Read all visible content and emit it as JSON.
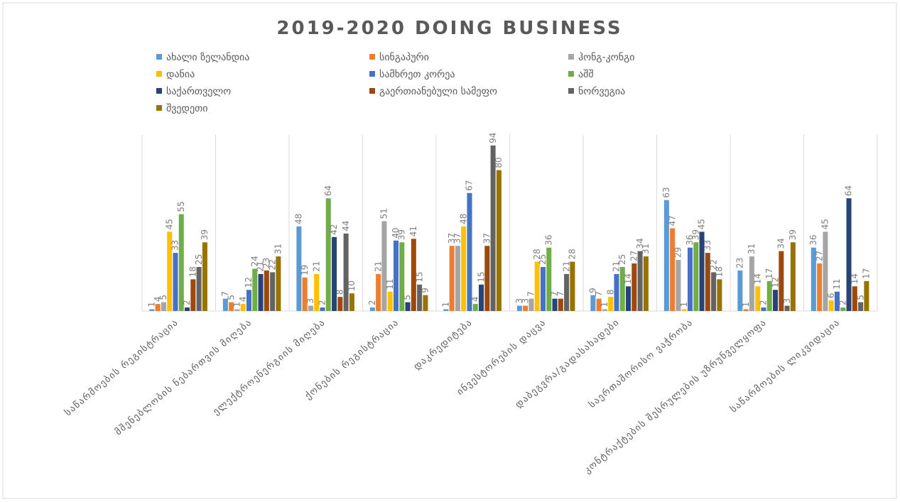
{
  "chart_data": {
    "type": "bar",
    "title": "2019-2020 DOING BUSINESS",
    "categories": [
      "საწარმოების რეგისტრაცია",
      "მშენებლობის ნებართვის მიღება",
      "ელექტროენერგიის მიღება",
      "ქონების რეგისტრაცია",
      "დაკრედიტება",
      "ინვესტორების დაცვა",
      "დაბეგვრა/გადასახადები",
      "საერთაშორისო ვაჭრობა",
      "კონტრაქტების შესრულების უზრუნველყოფა",
      "საწარმოების ლიკვიდაცია"
    ],
    "series": [
      {
        "name": "ახალი ზელანდია",
        "color": "#5b9bd5",
        "values": [
          1,
          7,
          48,
          2,
          1,
          3,
          9,
          63,
          23,
          36
        ]
      },
      {
        "name": "სინგაპური",
        "color": "#ed7d31",
        "values": [
          4,
          5,
          19,
          21,
          37,
          3,
          7,
          47,
          1,
          27
        ]
      },
      {
        "name": "ჰონგ-კონგი",
        "color": "#a5a5a5",
        "values": [
          5,
          1,
          3,
          51,
          37,
          7,
          1,
          29,
          31,
          45
        ]
      },
      {
        "name": "დანია",
        "color": "#ffc000",
        "values": [
          45,
          4,
          21,
          11,
          48,
          28,
          8,
          1,
          14,
          6
        ]
      },
      {
        "name": "სამხრეთ კორეა",
        "color": "#4472c4",
        "values": [
          33,
          12,
          2,
          40,
          67,
          25,
          21,
          36,
          2,
          11
        ]
      },
      {
        "name": "აშშ",
        "color": "#70ad47",
        "values": [
          55,
          24,
          64,
          39,
          4,
          36,
          25,
          39,
          17,
          2
        ]
      },
      {
        "name": "საქართველო",
        "color": "#264478",
        "values": [
          2,
          21,
          42,
          5,
          15,
          7,
          14,
          45,
          12,
          64
        ]
      },
      {
        "name": "გაერთიანებული სამეფო",
        "color": "#9e480e",
        "values": [
          18,
          23,
          8,
          41,
          37,
          7,
          27,
          33,
          34,
          14
        ]
      },
      {
        "name": "ნორვეგია",
        "color": "#636363",
        "values": [
          25,
          22,
          44,
          15,
          94,
          21,
          34,
          22,
          3,
          5
        ]
      },
      {
        "name": "შვედეთი",
        "color": "#997300",
        "values": [
          39,
          31,
          10,
          9,
          80,
          28,
          31,
          18,
          39,
          17
        ]
      }
    ],
    "ylim": [
      0,
      100
    ],
    "legend": "top"
  }
}
